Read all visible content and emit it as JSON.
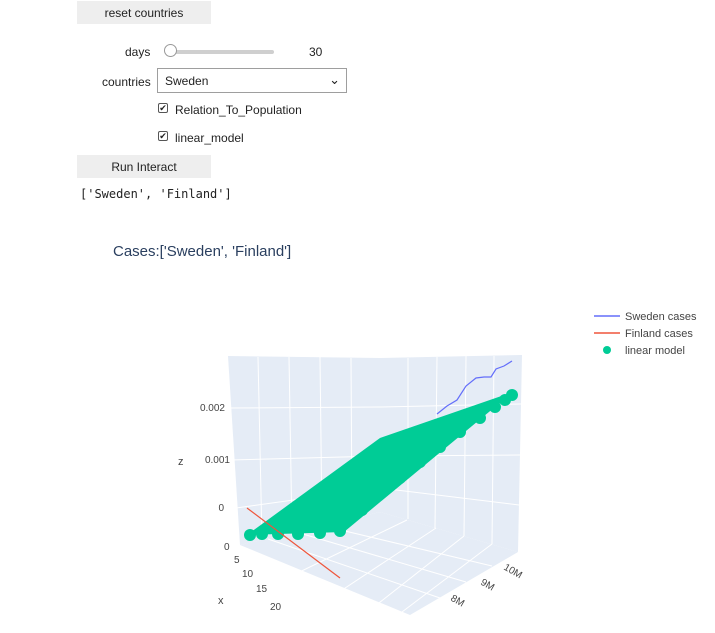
{
  "widgets": {
    "reset_button": "reset countries",
    "days_label": "days",
    "days_value": "30",
    "countries_label": "countries",
    "countries_selected": "Sweden",
    "checkbox_relation": "Relation_To_Population",
    "checkbox_linear": "linear_model",
    "run_button": "Run Interact",
    "output_text": "['Sweden', 'Finland']"
  },
  "plot": {
    "title": "Cases:['Sweden', 'Finland']",
    "legend": [
      "Sweden cases",
      "Finland cases",
      "linear model"
    ],
    "z_label": "z",
    "x_label": "x",
    "z_ticks": [
      "0.002",
      "0.001",
      "0"
    ],
    "x_ticks": [
      "0",
      "5",
      "10",
      "15",
      "20"
    ],
    "y_ticks": [
      "10M",
      "9M",
      "8M"
    ]
  },
  "colors": {
    "sweden": "#636efa",
    "finland": "#ef553b",
    "linear_model": "#00cc96"
  },
  "chart_data": {
    "type": "scatter",
    "title": "Cases:['Sweden', 'Finland']",
    "xlabel": "x",
    "zlabel": "z",
    "z_ticks": [
      0,
      0.001,
      0.002
    ],
    "x_ticks": [
      0,
      5,
      10,
      15,
      20
    ],
    "y_ticks": [
      "8M",
      "9M",
      "10M"
    ],
    "series": [
      {
        "name": "Sweden cases",
        "mode": "lines"
      },
      {
        "name": "Finland cases",
        "mode": "lines"
      },
      {
        "name": "linear model",
        "mode": "markers"
      }
    ]
  }
}
